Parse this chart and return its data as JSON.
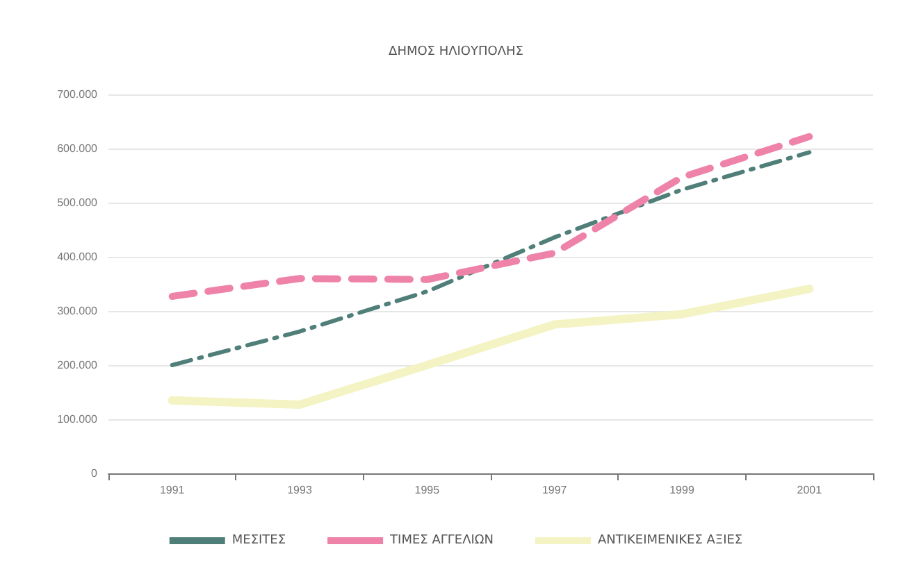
{
  "chart_data": {
    "type": "line",
    "title": "ΔΗΜΟΣ ΗΛΙΟΥΠΟΛΗΣ",
    "categories": [
      "1991",
      "1993",
      "1995",
      "1997",
      "1999",
      "2001"
    ],
    "series": [
      {
        "name": "ΜΕΣΙΤΕΣ",
        "color": "#4f7f78",
        "line_style": "dashed",
        "values": [
          200000,
          262000,
          336000,
          436000,
          524000,
          593000
        ]
      },
      {
        "name": "ΤΙΜΕΣ ΑΓΓΕΛΙΩΝ",
        "color": "#ee82a8",
        "line_style": "dashed",
        "values": [
          327000,
          360000,
          358000,
          407000,
          547000,
          622000
        ]
      },
      {
        "name": "ΑΝΤΙΚΕΙΜΕΝΙΚΕΣ ΑΞΙΕΣ",
        "color": "#f3f3c4",
        "line_style": "solid",
        "values": [
          135000,
          127000,
          200000,
          275000,
          294000,
          341000
        ]
      }
    ],
    "ylim": [
      0,
      700000
    ],
    "yticks": [
      {
        "value": 0,
        "label": "0"
      },
      {
        "value": 100000,
        "label": "100.000"
      },
      {
        "value": 200000,
        "label": "200.000"
      },
      {
        "value": 300000,
        "label": "300.000"
      },
      {
        "value": 400000,
        "label": "400.000"
      },
      {
        "value": 500000,
        "label": "500.000"
      },
      {
        "value": 600000,
        "label": "600.000"
      },
      {
        "value": 700000,
        "label": "700.000"
      }
    ],
    "grid": "y",
    "legend": "bottom",
    "marker": "none"
  }
}
